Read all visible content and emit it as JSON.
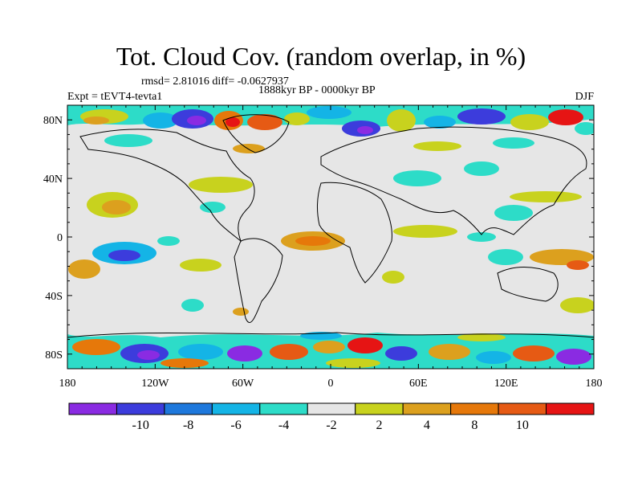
{
  "title": "Tot. Cloud Cov. (random overlap, in %)",
  "stats_line": "rmsd= 2.81016 diff= -0.0627937",
  "period": "1888kyr BP - 0000kyr BP",
  "experiment": "Expt = tEVT4-tevta1",
  "season": "DJF",
  "map": {
    "projection": "cylindrical equidistant",
    "lon_range": [
      -180,
      180
    ],
    "lat_range": [
      -90,
      90
    ],
    "x_ticks": [
      {
        "lon": -180,
        "label": "180"
      },
      {
        "lon": -120,
        "label": "120W"
      },
      {
        "lon": -60,
        "label": "60W"
      },
      {
        "lon": 0,
        "label": "0"
      },
      {
        "lon": 60,
        "label": "60E"
      },
      {
        "lon": 120,
        "label": "120E"
      },
      {
        "lon": 180,
        "label": "180"
      }
    ],
    "y_ticks": [
      {
        "lat": 80,
        "label": "80N"
      },
      {
        "lat": 40,
        "label": "40N"
      },
      {
        "lat": 0,
        "label": "0"
      },
      {
        "lat": -40,
        "label": "40S"
      },
      {
        "lat": -80,
        "label": "80S"
      }
    ],
    "background_color": "#e6e6e6"
  },
  "colorbar": {
    "colors": [
      "#8a2be2",
      "#3c3cdc",
      "#1e78dc",
      "#14b4e6",
      "#2ddcc8",
      "#e6e6e6",
      "#c8d21e",
      "#dca01e",
      "#e6780a",
      "#e65a14",
      "#e61414"
    ],
    "labels": [
      "-10",
      "-8",
      "-6",
      "-4",
      "-2",
      "2",
      "4",
      "8",
      "10"
    ]
  }
}
